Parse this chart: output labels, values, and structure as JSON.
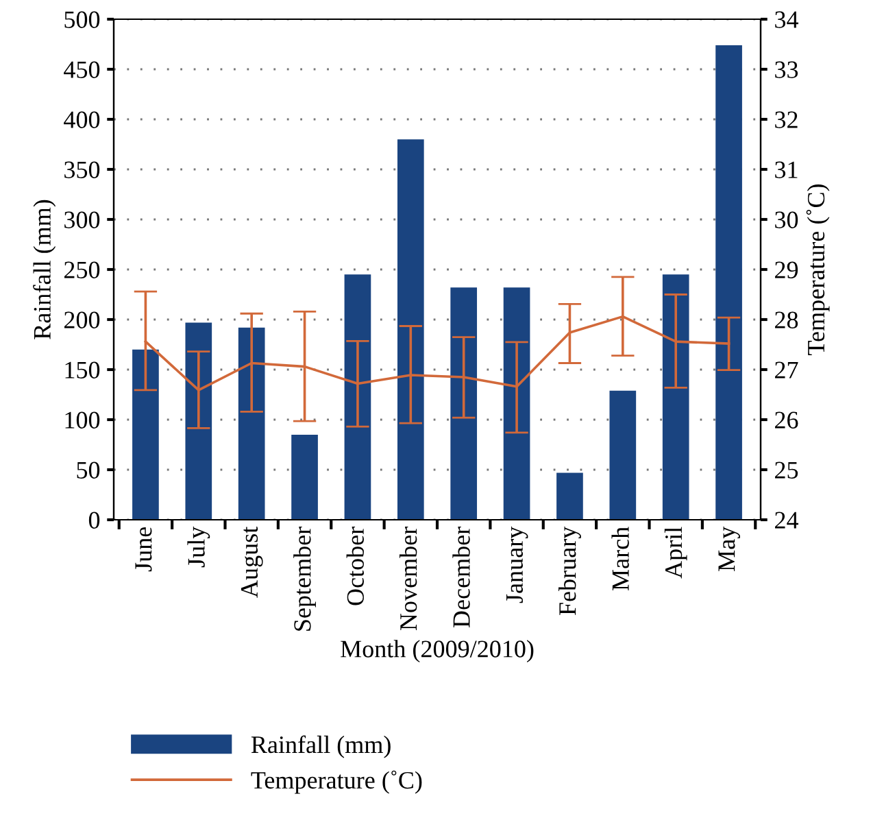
{
  "chart_data": {
    "type": "bar",
    "xlabel": "Month (2009/2010)",
    "ylabel": "Rainfall (mm)",
    "y2label": "Temperature (˚C)",
    "categories": [
      "June",
      "July",
      "August",
      "September",
      "October",
      "November",
      "December",
      "January",
      "February",
      "March",
      "April",
      "May"
    ],
    "series": [
      {
        "name": "Rainfall (mm)",
        "color": "#1a4480",
        "values": [
          170,
          197,
          192,
          85,
          245,
          380,
          232,
          232,
          47,
          129,
          245,
          474
        ]
      },
      {
        "name": "Temperature (˚C)",
        "type": "line",
        "axis": "y2",
        "color": "#d2693a",
        "values": [
          27.56,
          26.59,
          27.13,
          27.06,
          26.72,
          26.89,
          26.85,
          26.66,
          27.74,
          28.06,
          27.56,
          27.52
        ],
        "errors": [
          [
            26.59,
            28.56
          ],
          [
            25.83,
            27.36
          ],
          [
            26.16,
            28.12
          ],
          [
            25.97,
            28.16
          ],
          [
            25.86,
            27.57
          ],
          [
            25.93,
            27.87
          ],
          [
            26.04,
            27.65
          ],
          [
            25.74,
            27.55
          ],
          [
            27.13,
            28.31
          ],
          [
            27.28,
            28.85
          ],
          [
            26.64,
            28.5
          ],
          [
            26.99,
            28.04
          ]
        ]
      }
    ],
    "ylim": [
      0,
      500
    ],
    "yticks": [
      0,
      50,
      100,
      150,
      200,
      250,
      300,
      350,
      400,
      450,
      500
    ],
    "y2lim": [
      24,
      34
    ],
    "y2ticks": [
      24,
      25,
      26,
      27,
      28,
      29,
      30,
      31,
      32,
      33,
      34
    ],
    "grid": "y",
    "legend": "bottom left",
    "marker": "none",
    "line_style": "solid"
  }
}
